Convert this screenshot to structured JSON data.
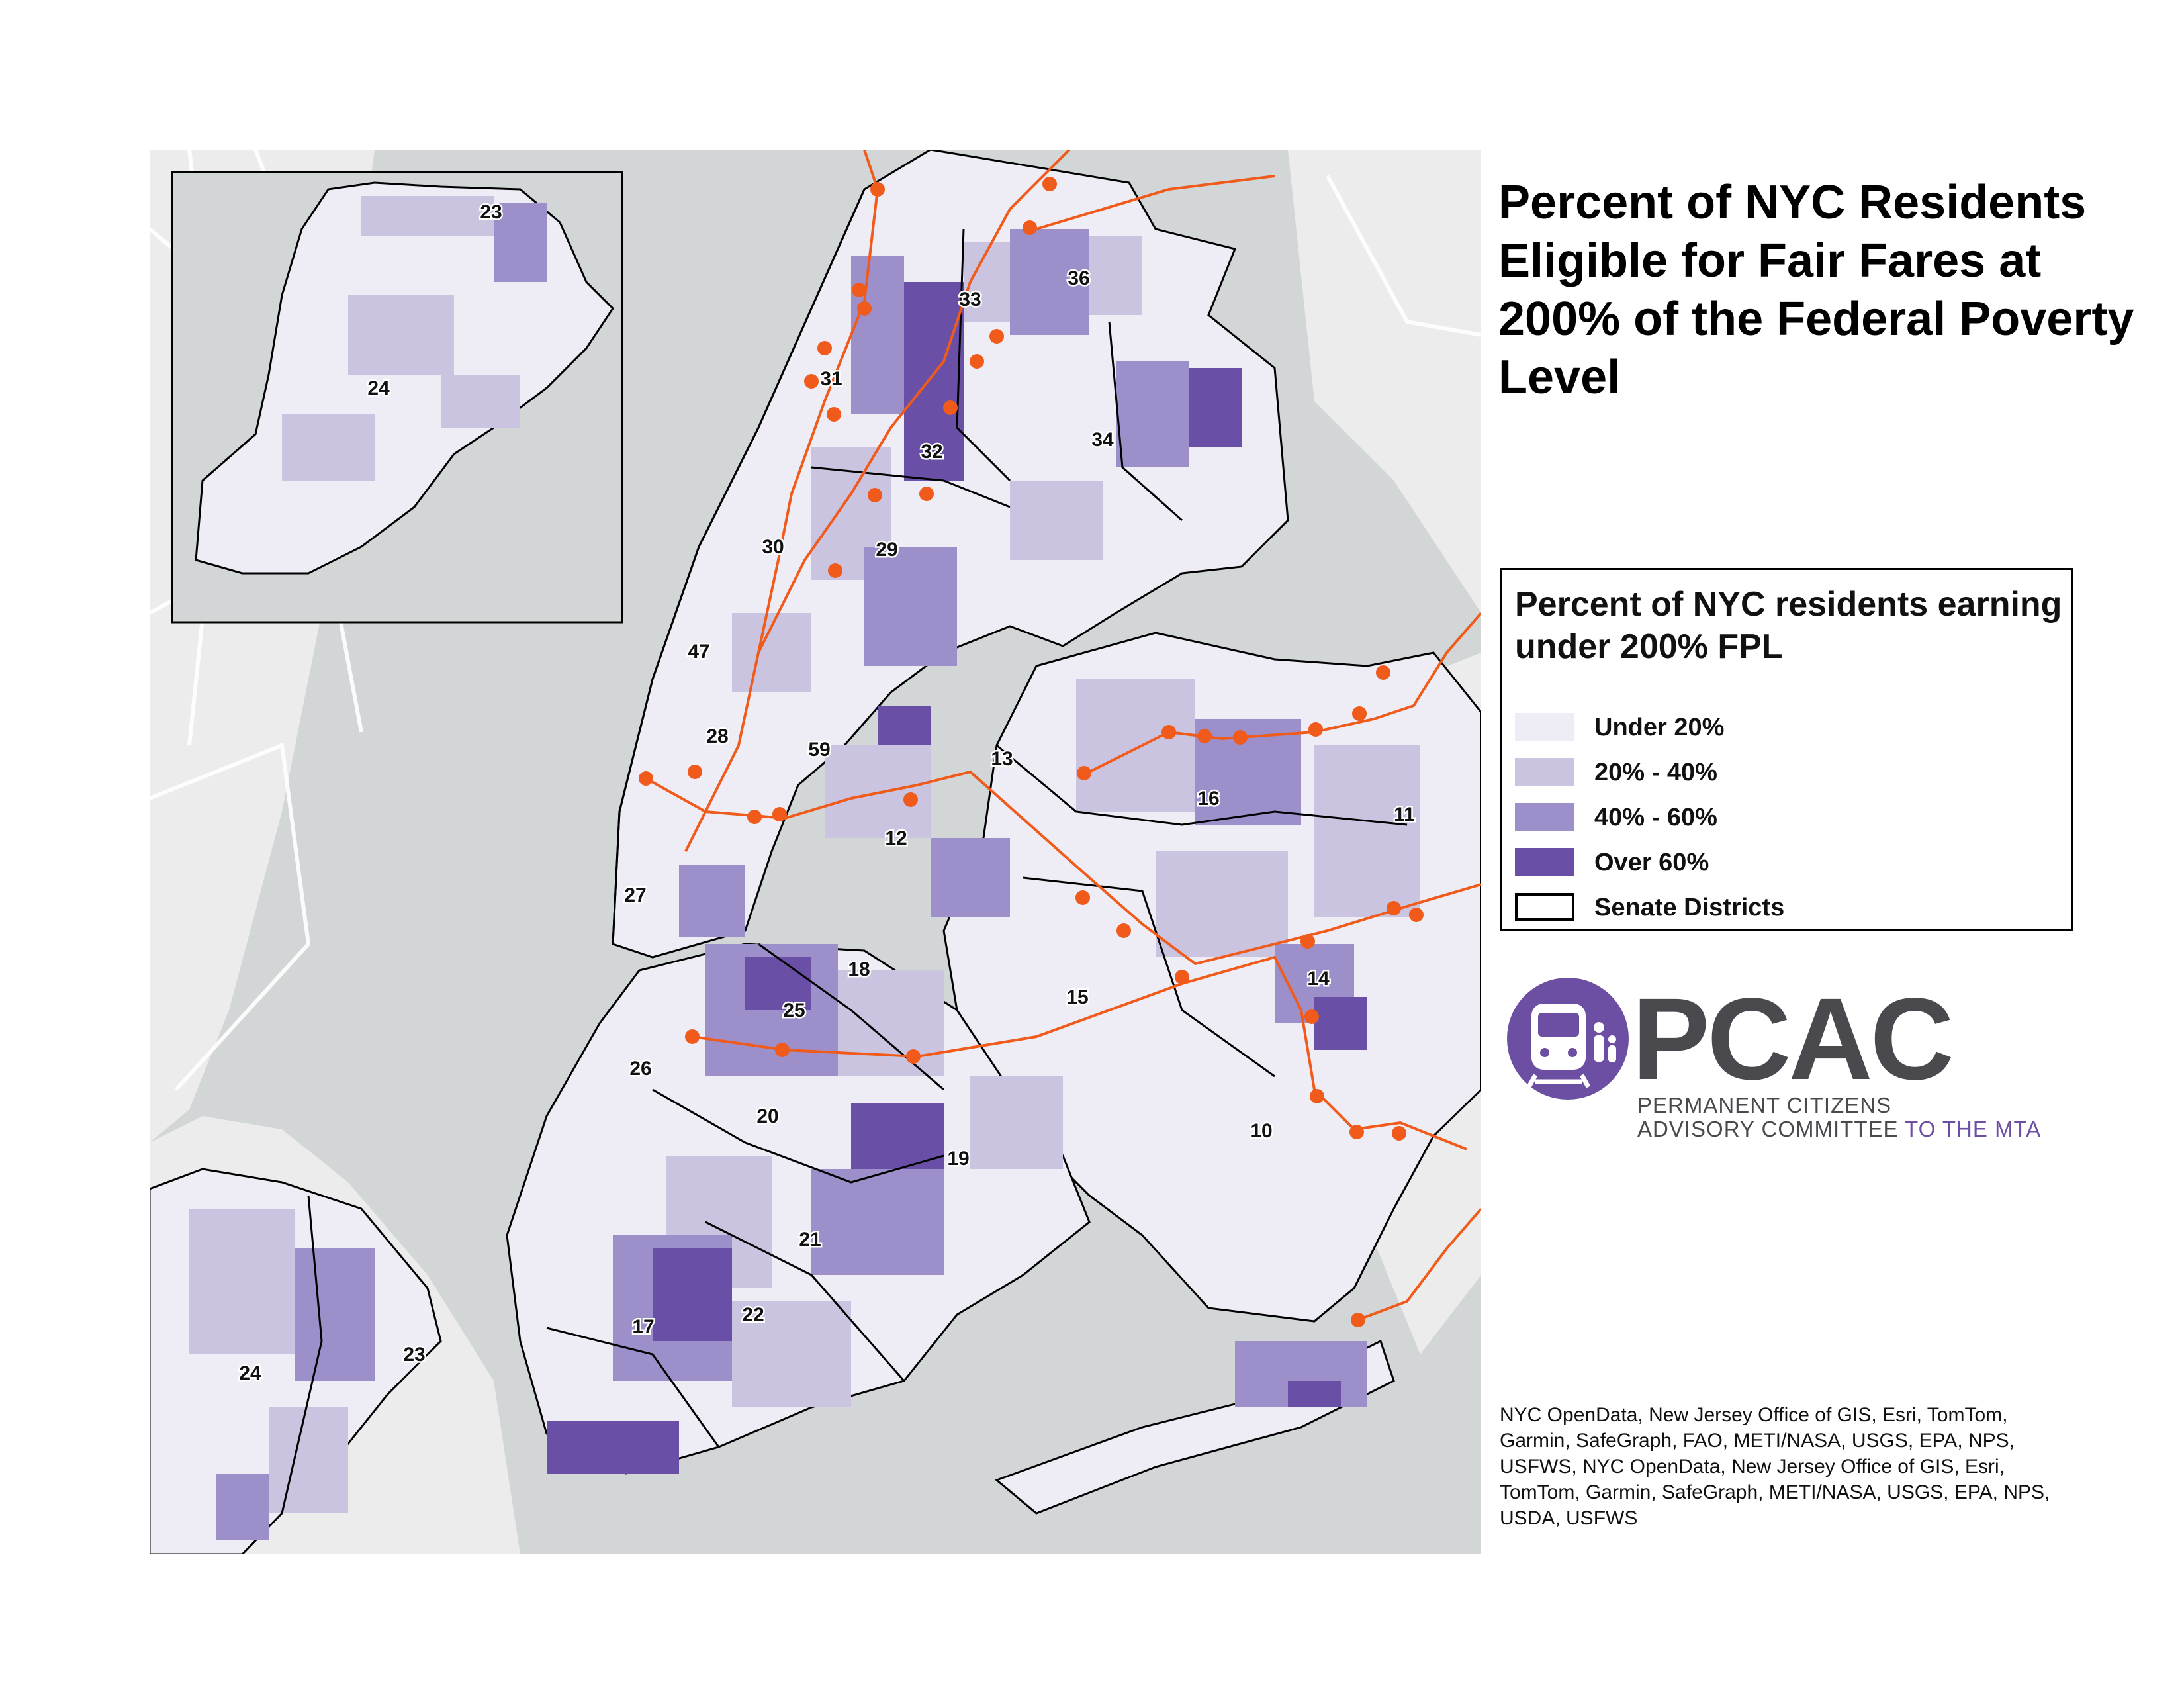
{
  "title": "Percent of NYC Residents Eligible for Fair Fares at 200% of the Federal Poverty Level",
  "legend": {
    "title": "Percent of NYC residents earning under 200% FPL",
    "items": [
      {
        "label": "Under 20%",
        "color": "#eeecf5"
      },
      {
        "label": "20% - 40%",
        "color": "#cbc4e0"
      },
      {
        "label": "40% - 60%",
        "color": "#9d8fc9"
      },
      {
        "label": "Over 60%",
        "color": "#6a4fa6"
      },
      {
        "label": "Senate Districts",
        "color": "#ffffff"
      }
    ]
  },
  "colors": {
    "water": "#d3d6d6",
    "land_background": "#ececec",
    "roads": "#ffffff",
    "district_boundary": "#000000",
    "subway_lines": "#f05a1a"
  },
  "district_labels": {
    "main": [
      "33",
      "36",
      "31",
      "32",
      "34",
      "30",
      "29",
      "47",
      "28",
      "59",
      "13",
      "16",
      "11",
      "12",
      "27",
      "18",
      "14",
      "25",
      "15",
      "26",
      "20",
      "10",
      "19",
      "21",
      "17",
      "22",
      "24",
      "23"
    ],
    "inset": [
      "23",
      "24"
    ]
  },
  "logo": {
    "name": "PCAC",
    "line1": "PERMANENT CITIZENS",
    "line2_main": "ADVISORY COMMITTEE",
    "line2_accent": "TO THE MTA",
    "accent_color": "#6c4fa3",
    "text_color": "#4a4a4e",
    "icon": "train-icon"
  },
  "credits": "NYC OpenData, New Jersey Office of GIS, Esri, TomTom, Garmin, SafeGraph, FAO, METI/NASA, USGS, EPA, NPS, USFWS, NYC OpenData, New Jersey Office of GIS, Esri, TomTom, Garmin, SafeGraph, METI/NASA, USGS, EPA, NPS, USDA, USFWS"
}
